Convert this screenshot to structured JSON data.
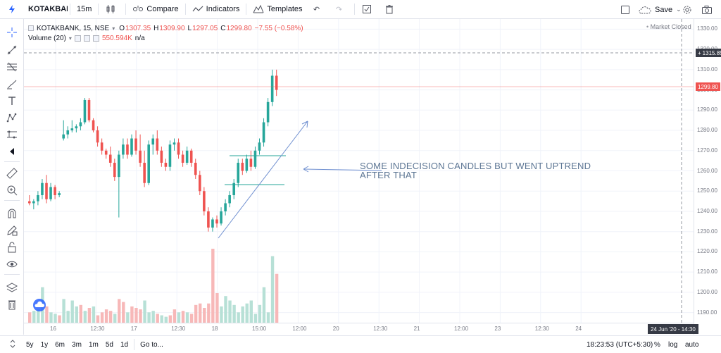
{
  "toolbar": {
    "symbol": "KOTAKBANK",
    "interval": "15m",
    "compare": "Compare",
    "indicators": "Indicators",
    "templates": "Templates",
    "save": "Save"
  },
  "legend": {
    "symbol_line": "KOTAKBANK, 15, NSE",
    "o_label": "O",
    "o": "1307.35",
    "h_label": "H",
    "h": "1309.90",
    "l_label": "L",
    "l": "1297.05",
    "c_label": "C",
    "c": "1299.80",
    "change": "−7.55 (−0.58%)",
    "volume_label": "Volume (20)",
    "volume_value": "550.594K",
    "volume_na": "n/a"
  },
  "market_status": "Market Closed",
  "annotation": {
    "line1": "SOME INDECISION CANDLES BUT WENT UPTREND",
    "line2": "AFTER THAT"
  },
  "price_axis": {
    "ticks": [
      "1330.00",
      "1320.00",
      "1310.00",
      "1300.00",
      "1290.00",
      "1280.00",
      "1270.00",
      "1260.00",
      "1250.00",
      "1240.00",
      "1230.00",
      "1220.00",
      "1210.00",
      "1200.00",
      "1190.00"
    ],
    "crosshair_price": "1315.85",
    "last_price": "1299.80"
  },
  "time_axis": {
    "ticks": [
      "16",
      "12:30",
      "17",
      "12:30",
      "18",
      "15:00",
      "12:00",
      "20",
      "12:30",
      "21",
      "12:00",
      "23",
      "12:30",
      "24"
    ],
    "crosshair_time": "24 Jun '20 - 14:30"
  },
  "bottombar": {
    "ranges": [
      "5y",
      "1y",
      "6m",
      "3m",
      "1m",
      "5d",
      "1d"
    ],
    "goto": "Go to...",
    "clock": "18:23:53 (UTC+5:30)",
    "percent": "%",
    "log": "log",
    "auto": "auto"
  },
  "colors": {
    "up": "#26a69a",
    "down": "#ef5350",
    "vol_up": "#b7e0d6",
    "vol_down": "#f7b8b8",
    "annotation": "#5d7694"
  },
  "chart_data": {
    "type": "candlestick",
    "price_range": [
      1185,
      1335
    ],
    "candles": [
      [
        1245,
        1248,
        1243,
        1244
      ],
      [
        1244,
        1246,
        1241,
        1245
      ],
      [
        1245,
        1250,
        1243,
        1248
      ],
      [
        1248,
        1256,
        1246,
        1254
      ],
      [
        1254,
        1258,
        1244,
        1246
      ],
      [
        1246,
        1254,
        1245,
        1252
      ],
      [
        1252,
        1253,
        1246,
        1248
      ],
      [
        1248,
        1250,
        1247,
        1249
      ],
      [
        1276,
        1285,
        1275,
        1278
      ],
      [
        1278,
        1282,
        1276,
        1280
      ],
      [
        1280,
        1285,
        1279,
        1281
      ],
      [
        1281,
        1283,
        1279,
        1282
      ],
      [
        1282,
        1286,
        1280,
        1284
      ],
      [
        1284,
        1296,
        1283,
        1295
      ],
      [
        1295,
        1296,
        1284,
        1285
      ],
      [
        1285,
        1286,
        1279,
        1280
      ],
      [
        1280,
        1282,
        1272,
        1274
      ],
      [
        1274,
        1276,
        1268,
        1270
      ],
      [
        1270,
        1271,
        1266,
        1268
      ],
      [
        1268,
        1272,
        1262,
        1264
      ],
      [
        1264,
        1266,
        1255,
        1257
      ],
      [
        1257,
        1270,
        1237,
        1268
      ],
      [
        1268,
        1276,
        1266,
        1273
      ],
      [
        1273,
        1276,
        1266,
        1268
      ],
      [
        1268,
        1278,
        1267,
        1276
      ],
      [
        1276,
        1280,
        1268,
        1270
      ],
      [
        1270,
        1278,
        1262,
        1264
      ],
      [
        1264,
        1270,
        1252,
        1254
      ],
      [
        1254,
        1275,
        1253,
        1273
      ],
      [
        1273,
        1278,
        1268,
        1276
      ],
      [
        1276,
        1280,
        1268,
        1270
      ],
      [
        1270,
        1272,
        1262,
        1264
      ],
      [
        1264,
        1266,
        1260,
        1262
      ],
      [
        1262,
        1275,
        1260,
        1273
      ],
      [
        1273,
        1276,
        1270,
        1274
      ],
      [
        1274,
        1276,
        1266,
        1268
      ],
      [
        1268,
        1270,
        1262,
        1264
      ],
      [
        1264,
        1272,
        1263,
        1270
      ],
      [
        1270,
        1271,
        1262,
        1264
      ],
      [
        1264,
        1266,
        1256,
        1258
      ],
      [
        1258,
        1260,
        1248,
        1250
      ],
      [
        1250,
        1252,
        1238,
        1240
      ],
      [
        1240,
        1242,
        1230,
        1232
      ],
      [
        1232,
        1237,
        1230,
        1236
      ],
      [
        1236,
        1238,
        1232,
        1234
      ],
      [
        1234,
        1242,
        1233,
        1240
      ],
      [
        1240,
        1246,
        1238,
        1244
      ],
      [
        1244,
        1250,
        1242,
        1248
      ],
      [
        1248,
        1256,
        1246,
        1254
      ],
      [
        1254,
        1266,
        1252,
        1264
      ],
      [
        1264,
        1266,
        1258,
        1260
      ],
      [
        1260,
        1268,
        1259,
        1266
      ],
      [
        1266,
        1270,
        1260,
        1262
      ],
      [
        1262,
        1272,
        1261,
        1270
      ],
      [
        1270,
        1276,
        1268,
        1274
      ],
      [
        1274,
        1286,
        1272,
        1284
      ],
      [
        1284,
        1296,
        1282,
        1294
      ],
      [
        1294,
        1310,
        1292,
        1307
      ],
      [
        1307,
        1310,
        1297,
        1300
      ]
    ],
    "volume": [
      [
        14,
        "d"
      ],
      [
        16,
        "u"
      ],
      [
        18,
        "u"
      ],
      [
        48,
        "u"
      ],
      [
        22,
        "d"
      ],
      [
        14,
        "u"
      ],
      [
        12,
        "u"
      ],
      [
        10,
        "d"
      ],
      [
        32,
        "u"
      ],
      [
        16,
        "u"
      ],
      [
        30,
        "u"
      ],
      [
        22,
        "u"
      ],
      [
        24,
        "d"
      ],
      [
        16,
        "u"
      ],
      [
        20,
        "d"
      ],
      [
        22,
        "u"
      ],
      [
        10,
        "d"
      ],
      [
        14,
        "d"
      ],
      [
        18,
        "d"
      ],
      [
        16,
        "d"
      ],
      [
        12,
        "u"
      ],
      [
        32,
        "d"
      ],
      [
        28,
        "d"
      ],
      [
        14,
        "u"
      ],
      [
        22,
        "d"
      ],
      [
        20,
        "d"
      ],
      [
        18,
        "d"
      ],
      [
        30,
        "u"
      ],
      [
        14,
        "u"
      ],
      [
        16,
        "u"
      ],
      [
        12,
        "d"
      ],
      [
        10,
        "u"
      ],
      [
        8,
        "u"
      ],
      [
        10,
        "d"
      ],
      [
        18,
        "d"
      ],
      [
        14,
        "u"
      ],
      [
        16,
        "d"
      ],
      [
        14,
        "u"
      ],
      [
        12,
        "d"
      ],
      [
        24,
        "d"
      ],
      [
        26,
        "d"
      ],
      [
        20,
        "d"
      ],
      [
        26,
        "d"
      ],
      [
        100,
        "d"
      ],
      [
        40,
        "d"
      ],
      [
        22,
        "u"
      ],
      [
        36,
        "u"
      ],
      [
        30,
        "u"
      ],
      [
        24,
        "u"
      ],
      [
        14,
        "u"
      ],
      [
        22,
        "u"
      ],
      [
        26,
        "u"
      ],
      [
        30,
        "u"
      ],
      [
        12,
        "u"
      ],
      [
        24,
        "u"
      ],
      [
        48,
        "u"
      ],
      [
        14,
        "u"
      ],
      [
        90,
        "u"
      ],
      [
        66,
        "d"
      ]
    ]
  }
}
